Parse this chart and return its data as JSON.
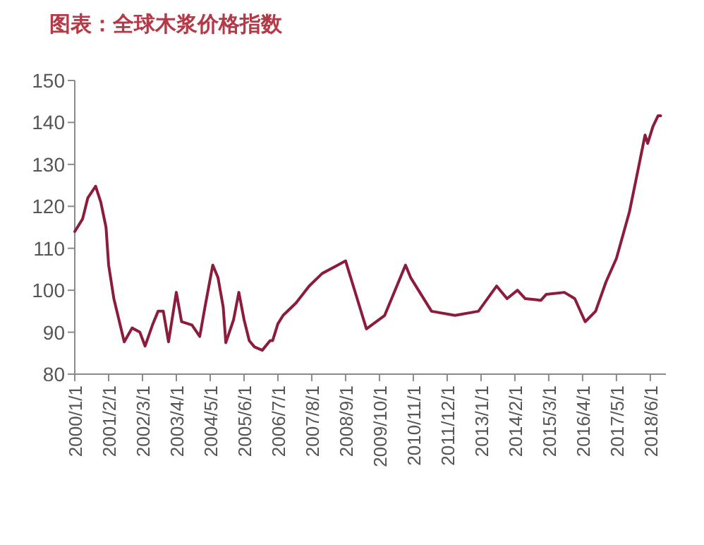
{
  "chart_data": {
    "type": "line",
    "title": "图表：全球木浆价格指数",
    "x": [
      "2000-01",
      "2000-04",
      "2000-06",
      "2000-09",
      "2000-11",
      "2001-01",
      "2001-02",
      "2001-04",
      "2001-08",
      "2001-11",
      "2002-02",
      "2002-04",
      "2002-07",
      "2002-09",
      "2002-11",
      "2003-01",
      "2003-04",
      "2003-06",
      "2003-10",
      "2004-01",
      "2004-03",
      "2004-06",
      "2004-08",
      "2004-10",
      "2004-11",
      "2005-02",
      "2005-04",
      "2005-06",
      "2005-08",
      "2005-10",
      "2006-01",
      "2006-04",
      "2006-05",
      "2006-07",
      "2006-09",
      "2007-02",
      "2007-07",
      "2007-12",
      "2008-06",
      "2008-09",
      "2009-05",
      "2009-12",
      "2010-08",
      "2010-10",
      "2011-06",
      "2012-03",
      "2012-12",
      "2013-07",
      "2013-11",
      "2014-03",
      "2014-06",
      "2014-12",
      "2015-02",
      "2015-09",
      "2016-01",
      "2016-05",
      "2016-09",
      "2017-01",
      "2017-05",
      "2017-10",
      "2018-01",
      "2018-04",
      "2018-05",
      "2018-07",
      "2018-09",
      "2018-10"
    ],
    "series": [
      {
        "color": "#8b1c3c",
        "values": [
          114,
          117,
          122,
          124.8,
          121,
          115,
          106,
          98,
          87.7,
          91,
          90,
          86.7,
          92,
          95,
          95,
          87.7,
          99.5,
          92.5,
          91.7,
          89,
          96,
          106,
          103,
          96,
          87.5,
          93,
          99.5,
          93,
          88,
          86.5,
          85.7,
          88,
          88,
          92,
          94,
          97,
          101,
          104,
          106,
          107,
          90.8,
          94,
          106,
          103,
          95,
          94,
          95,
          101,
          98,
          100,
          98,
          97.6,
          99,
          99.5,
          98,
          92.5,
          95,
          102,
          107.6,
          118.7,
          127.8,
          137,
          135,
          139,
          141.6,
          141.6
        ]
      }
    ],
    "xlim": [
      "2000-01",
      "2018-12"
    ],
    "xticks": [
      {
        "value": "2000-01",
        "label": "2000/1/1"
      },
      {
        "value": "2001-02",
        "label": "2001/2/1"
      },
      {
        "value": "2002-03",
        "label": "2002/3/1"
      },
      {
        "value": "2003-04",
        "label": "2003/4/1"
      },
      {
        "value": "2004-05",
        "label": "2004/5/1"
      },
      {
        "value": "2005-06",
        "label": "2005/6/1"
      },
      {
        "value": "2006-07",
        "label": "2006/7/1"
      },
      {
        "value": "2007-08",
        "label": "2007/8/1"
      },
      {
        "value": "2008-09",
        "label": "2008/9/1"
      },
      {
        "value": "2009-10",
        "label": "2009/10/1"
      },
      {
        "value": "2010-11",
        "label": "2010/11/1"
      },
      {
        "value": "2011-12",
        "label": "2011/12/1"
      },
      {
        "value": "2013-01",
        "label": "2013/1/1"
      },
      {
        "value": "2014-02",
        "label": "2014/2/1"
      },
      {
        "value": "2015-03",
        "label": "2015/3/1"
      },
      {
        "value": "2016-04",
        "label": "2016/4/1"
      },
      {
        "value": "2017-05",
        "label": "2017/5/1"
      },
      {
        "value": "2018-06",
        "label": "2018/6/1"
      }
    ],
    "ylim": [
      80,
      150
    ],
    "yticks": [
      80,
      90,
      100,
      110,
      120,
      130,
      140,
      150
    ],
    "marker": "none",
    "line_style": "solid"
  }
}
